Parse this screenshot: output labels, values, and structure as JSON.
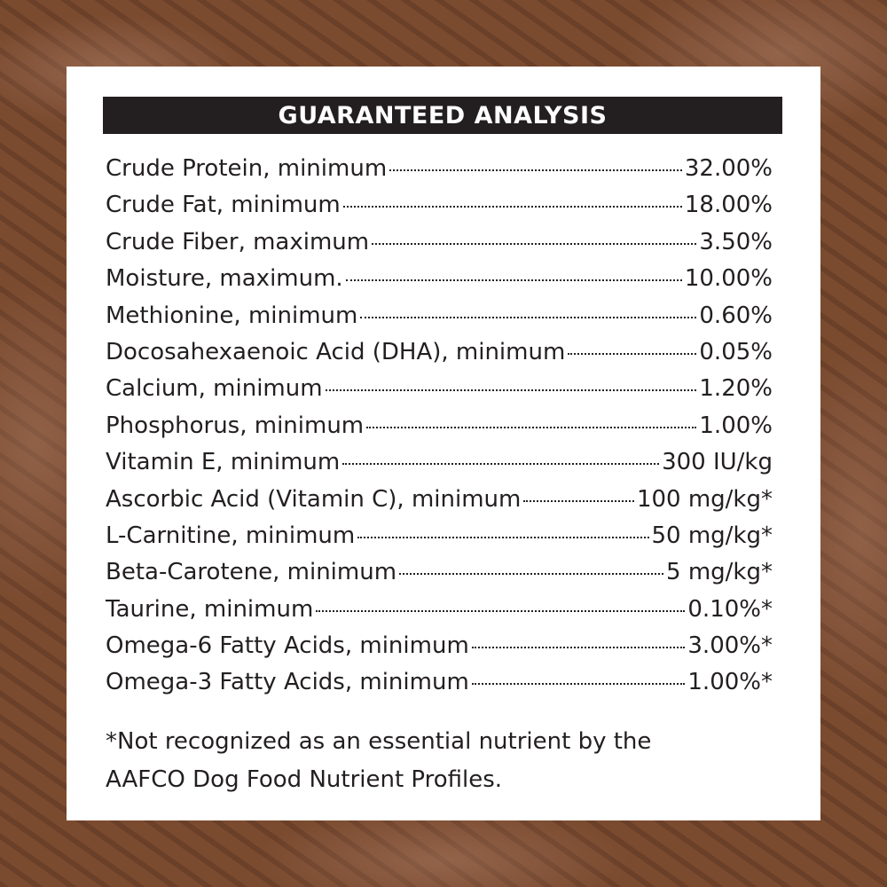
{
  "title": "GUARANTEED ANALYSIS",
  "rows": [
    {
      "label": "Crude Protein, minimum",
      "value": "32.00%"
    },
    {
      "label": "Crude Fat, minimum",
      "value": "18.00%"
    },
    {
      "label": "Crude Fiber, maximum",
      "value": "3.50%"
    },
    {
      "label": "Moisture, maximum.",
      "value": "10.00%"
    },
    {
      "label": "Methionine, minimum",
      "value": "0.60%"
    },
    {
      "label": "Docosahexaenoic Acid (DHA), minimum",
      "value": "0.05%"
    },
    {
      "label": "Calcium, minimum",
      "value": "1.20%"
    },
    {
      "label": "Phosphorus, minimum",
      "value": "1.00%"
    },
    {
      "label": "Vitamin E, minimum",
      "value": "300 IU/kg"
    },
    {
      "label": "Ascorbic Acid (Vitamin C), minimum",
      "value": "100 mg/kg*"
    },
    {
      "label": "L-Carnitine, minimum",
      "value": "50 mg/kg*"
    },
    {
      "label": "Beta-Carotene, minimum",
      "value": "5 mg/kg*"
    },
    {
      "label": "Taurine, minimum",
      "value": "0.10%*"
    },
    {
      "label": "Omega-6 Fatty Acids, minimum",
      "value": "3.00%*"
    },
    {
      "label": "Omega-3 Fatty Acids, minimum",
      "value": "1.00%*"
    }
  ],
  "footnote": {
    "line1": "*Not recognized as an essential nutrient by the",
    "line2": "AAFCO Dog Food Nutrient Profiles."
  },
  "colors": {
    "background": "#7b4b30",
    "header": "#231f20",
    "card": "#ffffff"
  }
}
